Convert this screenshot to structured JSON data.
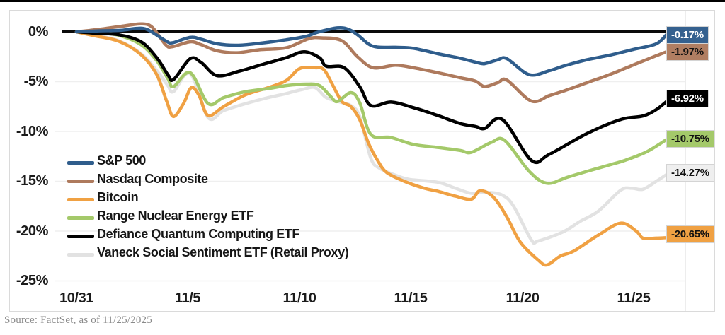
{
  "source_note": "Source: FactSet, as of 11/25/2025",
  "chart_data": {
    "type": "line",
    "title": "",
    "x_unit": "days since 10/31",
    "x_domain": [
      0,
      26.5
    ],
    "ylim": [
      -25,
      1
    ],
    "grid": "horizontal",
    "legend_position": "inside-left",
    "x_axis": {
      "tick_labels": [
        "10/31",
        "11/5",
        "11/10",
        "11/15",
        "11/20",
        "11/25"
      ],
      "tick_days": [
        0,
        5,
        10,
        15,
        20,
        25
      ]
    },
    "y_axis": {
      "tick_labels": [
        "0%",
        "-5%",
        "-10%",
        "-15%",
        "-20%",
        "-25%"
      ],
      "tick_values": [
        0,
        -5,
        -10,
        -15,
        -20,
        -25
      ]
    },
    "zero_line_color": "#0a0a0a",
    "gridline_color": "#efefef",
    "series": [
      {
        "name": "S&P 500",
        "color": "#2F5D8C",
        "end_label": "-0.17%",
        "badge_bg": "#35618F",
        "badge_fg": "#ffffff",
        "points": [
          [
            0,
            0
          ],
          [
            1,
            0.1
          ],
          [
            2,
            0.15
          ],
          [
            2.7,
            0.35
          ],
          [
            3.2,
            0.2
          ],
          [
            4,
            -0.9
          ],
          [
            4.3,
            -1.1
          ],
          [
            5.1,
            -0.55
          ],
          [
            5.6,
            -0.75
          ],
          [
            6.3,
            -1.2
          ],
          [
            7.2,
            -1.35
          ],
          [
            8.2,
            -1.15
          ],
          [
            9.4,
            -0.8
          ],
          [
            10.3,
            -0.45
          ],
          [
            10.8,
            -0.05
          ],
          [
            11.7,
            0.4
          ],
          [
            12.2,
            0.25
          ],
          [
            12.6,
            -0.3
          ],
          [
            13.3,
            -1.45
          ],
          [
            14.3,
            -1.55
          ],
          [
            15.1,
            -1.65
          ],
          [
            16.2,
            -2.2
          ],
          [
            17.2,
            -2.65
          ],
          [
            17.9,
            -3.05
          ],
          [
            18.3,
            -3.2
          ],
          [
            18.9,
            -2.8
          ],
          [
            19.3,
            -2.7
          ],
          [
            20.3,
            -4.3
          ],
          [
            21.2,
            -3.9
          ],
          [
            21.9,
            -3.4
          ],
          [
            22.9,
            -2.8
          ],
          [
            23.9,
            -2.35
          ],
          [
            25,
            -1.75
          ],
          [
            26,
            -1.2
          ],
          [
            26.5,
            -0.17
          ]
        ]
      },
      {
        "name": "Nasdaq Composite",
        "color": "#AE7A5D",
        "end_label": "-1.97%",
        "badge_bg": "#B07E62",
        "badge_fg": "#111111",
        "points": [
          [
            0,
            0
          ],
          [
            1,
            0.25
          ],
          [
            2,
            0.55
          ],
          [
            2.9,
            0.8
          ],
          [
            3.4,
            0.45
          ],
          [
            4,
            -1.3
          ],
          [
            4.3,
            -1.5
          ],
          [
            5.1,
            -1
          ],
          [
            5.6,
            -1.3
          ],
          [
            6.3,
            -1.9
          ],
          [
            7.2,
            -2.1
          ],
          [
            8.2,
            -1.8
          ],
          [
            9.4,
            -1.6
          ],
          [
            10.4,
            -0.7
          ],
          [
            11,
            -0.6
          ],
          [
            11.9,
            -0.9
          ],
          [
            12.6,
            -2.5
          ],
          [
            13.3,
            -3.6
          ],
          [
            14.3,
            -3.35
          ],
          [
            15.1,
            -3.6
          ],
          [
            16.2,
            -4.1
          ],
          [
            17.2,
            -4.6
          ],
          [
            17.9,
            -4.95
          ],
          [
            18.3,
            -5.5
          ],
          [
            18.9,
            -5.1
          ],
          [
            19.3,
            -4.85
          ],
          [
            20.4,
            -6.95
          ],
          [
            21.2,
            -6.4
          ],
          [
            21.9,
            -5.9
          ],
          [
            22.9,
            -5.1
          ],
          [
            23.9,
            -4.3
          ],
          [
            25,
            -3.3
          ],
          [
            26,
            -2.4
          ],
          [
            26.5,
            -1.97
          ]
        ]
      },
      {
        "name": "Bitcoin",
        "color": "#F0A143",
        "end_label": "-20.65%",
        "badge_bg": "#F0A143",
        "badge_fg": "#111111",
        "points": [
          [
            0,
            0
          ],
          [
            0.7,
            -0.35
          ],
          [
            1.9,
            -0.95
          ],
          [
            2.9,
            -2.3
          ],
          [
            3.6,
            -4.3
          ],
          [
            4.05,
            -7
          ],
          [
            4.35,
            -8.5
          ],
          [
            4.8,
            -7.2
          ],
          [
            5.15,
            -5.6
          ],
          [
            5.5,
            -6.4
          ],
          [
            5.9,
            -8.4
          ],
          [
            6.6,
            -7.5
          ],
          [
            7.6,
            -6.3
          ],
          [
            8.6,
            -5.6
          ],
          [
            9.4,
            -4.9
          ],
          [
            10,
            -3.7
          ],
          [
            10.7,
            -3.6
          ],
          [
            11.1,
            -3.8
          ],
          [
            11.5,
            -5.4
          ],
          [
            11.9,
            -7
          ],
          [
            12.3,
            -7.5
          ],
          [
            12.7,
            -8.8
          ],
          [
            13.1,
            -11.2
          ],
          [
            13.5,
            -12.9
          ],
          [
            13.9,
            -14.1
          ],
          [
            14.7,
            -15
          ],
          [
            15.6,
            -15.7
          ],
          [
            16.2,
            -16
          ],
          [
            17,
            -16.5
          ],
          [
            17.7,
            -16.8
          ],
          [
            18.1,
            -15.95
          ],
          [
            18.7,
            -16.6
          ],
          [
            19.3,
            -18.6
          ],
          [
            19.9,
            -21.1
          ],
          [
            20.7,
            -22.9
          ],
          [
            21.1,
            -23.4
          ],
          [
            21.7,
            -22.5
          ],
          [
            22.3,
            -22
          ],
          [
            23.4,
            -20.4
          ],
          [
            24.4,
            -19.2
          ],
          [
            25.1,
            -20
          ],
          [
            25.4,
            -20.7
          ],
          [
            26,
            -20.7
          ],
          [
            26.5,
            -20.65
          ]
        ]
      },
      {
        "name": "Range Nuclear Energy ETF",
        "color": "#A4C96A",
        "end_label": "-10.75%",
        "badge_bg": "#A4C96A",
        "badge_fg": "#111111",
        "points": [
          [
            0,
            0
          ],
          [
            0.9,
            -0.1
          ],
          [
            1.9,
            -0.35
          ],
          [
            2.9,
            -1.3
          ],
          [
            3.6,
            -2.9
          ],
          [
            4.1,
            -4.7
          ],
          [
            4.35,
            -5.5
          ],
          [
            5.1,
            -4.1
          ],
          [
            5.9,
            -7.2
          ],
          [
            6.6,
            -6.6
          ],
          [
            7.6,
            -6
          ],
          [
            8.6,
            -5.7
          ],
          [
            9.4,
            -5.4
          ],
          [
            10.3,
            -5.25
          ],
          [
            10.9,
            -5.4
          ],
          [
            11.4,
            -6.5
          ],
          [
            11.7,
            -7
          ],
          [
            12.3,
            -6.1
          ],
          [
            12.7,
            -7.1
          ],
          [
            13.2,
            -10.3
          ],
          [
            14.1,
            -10.6
          ],
          [
            15.1,
            -11.3
          ],
          [
            16.2,
            -11.6
          ],
          [
            17.2,
            -11.9
          ],
          [
            17.7,
            -12.1
          ],
          [
            18.6,
            -11.1
          ],
          [
            19.2,
            -10.9
          ],
          [
            20.3,
            -14
          ],
          [
            21.1,
            -15.2
          ],
          [
            22,
            -14.6
          ],
          [
            22.9,
            -14
          ],
          [
            24,
            -13.3
          ],
          [
            24.6,
            -12.9
          ],
          [
            25.6,
            -12
          ],
          [
            26.5,
            -10.75
          ]
        ]
      },
      {
        "name": "Defiance Quantum Computing ETF",
        "color": "#000000",
        "end_label": "-6.92%",
        "badge_bg": "#000000",
        "badge_fg": "#ffffff",
        "points": [
          [
            0,
            0
          ],
          [
            0.9,
            -0.15
          ],
          [
            1.9,
            -0.3
          ],
          [
            2.9,
            -1
          ],
          [
            3.6,
            -2.6
          ],
          [
            4.1,
            -4.3
          ],
          [
            4.35,
            -4.8
          ],
          [
            5.1,
            -2.7
          ],
          [
            5.6,
            -3.1
          ],
          [
            6.3,
            -4.4
          ],
          [
            7.3,
            -3.95
          ],
          [
            8.3,
            -3.3
          ],
          [
            9.4,
            -2.6
          ],
          [
            10.2,
            -2
          ],
          [
            10.9,
            -2.6
          ],
          [
            11.2,
            -3.45
          ],
          [
            12,
            -3.6
          ],
          [
            12.7,
            -5.5
          ],
          [
            13.2,
            -7.4
          ],
          [
            14.1,
            -7.05
          ],
          [
            15.1,
            -7.6
          ],
          [
            16.2,
            -8.4
          ],
          [
            17.2,
            -9.2
          ],
          [
            17.9,
            -9.5
          ],
          [
            18.3,
            -9.7
          ],
          [
            19.1,
            -8.8
          ],
          [
            20.4,
            -12.9
          ],
          [
            21.2,
            -12.3
          ],
          [
            22.9,
            -10.2
          ],
          [
            24.4,
            -8.8
          ],
          [
            25.4,
            -8.45
          ],
          [
            26,
            -7.8
          ],
          [
            26.5,
            -6.92
          ]
        ]
      },
      {
        "name": "Vaneck Social Sentiment ETF (Retail Proxy)",
        "color": "#E2E2E2",
        "end_label": "-14.27%",
        "badge_bg": "#EFEFEF",
        "badge_fg": "#111111",
        "points": [
          [
            0,
            0
          ],
          [
            0.8,
            -0.3
          ],
          [
            1.9,
            -0.9
          ],
          [
            2.9,
            -2.2
          ],
          [
            3.6,
            -3.9
          ],
          [
            4.1,
            -5.4
          ],
          [
            4.35,
            -6
          ],
          [
            5.1,
            -4.2
          ],
          [
            5.9,
            -8.6
          ],
          [
            6.6,
            -7.9
          ],
          [
            7.6,
            -7.2
          ],
          [
            8.6,
            -6.6
          ],
          [
            9.4,
            -6.2
          ],
          [
            10.1,
            -5.8
          ],
          [
            10.7,
            -5.6
          ],
          [
            11.2,
            -6.6
          ],
          [
            11.9,
            -7.1
          ],
          [
            12.3,
            -7.4
          ],
          [
            12.7,
            -8.5
          ],
          [
            13.2,
            -12.7
          ],
          [
            13.6,
            -13.7
          ],
          [
            14.2,
            -14.3
          ],
          [
            14.9,
            -14.8
          ],
          [
            16.2,
            -15.1
          ],
          [
            17,
            -15.7
          ],
          [
            17.7,
            -16.2
          ],
          [
            18.4,
            -16.1
          ],
          [
            19.1,
            -16.4
          ],
          [
            19.6,
            -17.5
          ],
          [
            20.4,
            -20.9
          ],
          [
            20.7,
            -21
          ],
          [
            21.8,
            -20.1
          ],
          [
            22.6,
            -19
          ],
          [
            23.4,
            -18
          ],
          [
            24.4,
            -15.9
          ],
          [
            24.9,
            -15.7
          ],
          [
            25.4,
            -15.8
          ],
          [
            26,
            -15
          ],
          [
            26.5,
            -14.27
          ]
        ]
      }
    ]
  }
}
